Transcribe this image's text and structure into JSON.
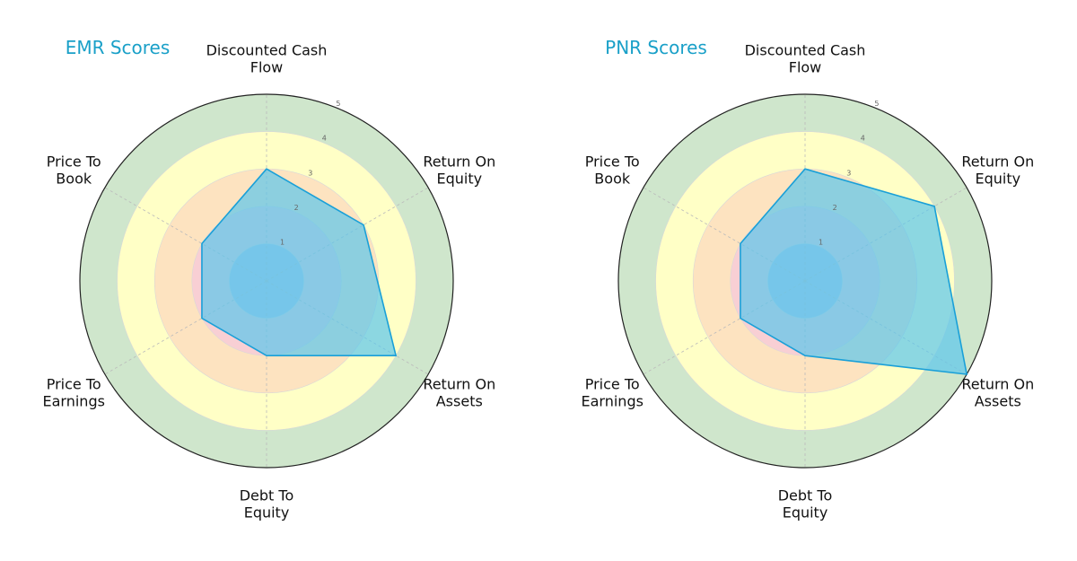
{
  "chart_data": [
    {
      "type": "radar",
      "title": "EMR Scores",
      "axes": [
        "Discounted Cash\nFlow",
        "Return On\nEquity",
        "Return On\nAssets",
        "Debt To\nEquity",
        "Price To\nEarnings",
        "Price To\nBook"
      ],
      "values": [
        3,
        3,
        4,
        2,
        2,
        2
      ],
      "rlim": [
        0,
        5
      ],
      "rticks": [
        "1",
        "2",
        "3",
        "4",
        "5"
      ],
      "band_colors": [
        "#a9c4e8",
        "#f8cfd4",
        "#fde3c0",
        "#ffffc6",
        "#cfe6cc"
      ],
      "fill_color": "#5bc6ec",
      "line_color": "#1aa0d8",
      "grid": true
    },
    {
      "type": "radar",
      "title": "PNR Scores",
      "axes": [
        "Discounted Cash\nFlow",
        "Return On\nEquity",
        "Return On\nAssets",
        "Debt To\nEquity",
        "Price To\nEarnings",
        "Price To\nBook"
      ],
      "values": [
        3,
        4,
        5,
        2,
        2,
        2
      ],
      "rlim": [
        0,
        5
      ],
      "rticks": [
        "1",
        "2",
        "3",
        "4",
        "5"
      ],
      "band_colors": [
        "#a9c4e8",
        "#f8cfd4",
        "#fde3c0",
        "#ffffc6",
        "#cfe6cc"
      ],
      "fill_color": "#5bc6ec",
      "line_color": "#1aa0d8",
      "grid": true
    }
  ]
}
